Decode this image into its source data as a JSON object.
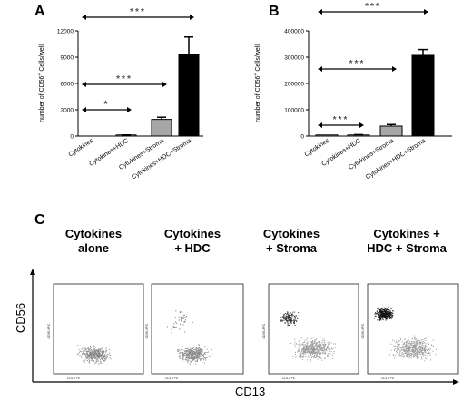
{
  "panels": {
    "a": "A",
    "b": "B",
    "c": "C"
  },
  "significance": {
    "one": "*",
    "three": "***"
  },
  "chart_data": [
    {
      "type": "bar",
      "panel": "A",
      "ylabel_parts": [
        "number of CD56",
        "+",
        " Cells/well"
      ],
      "categories": [
        "Cytokines",
        "Cytokines+HDC",
        "Cytokines+Stroma",
        "Cytokines+HDC+Stroma"
      ],
      "values": [
        0,
        80,
        1900,
        9300
      ],
      "errors": [
        0,
        50,
        250,
        2000
      ],
      "colors": [
        "#ffffff",
        "#ffffff",
        "#a6a6a6",
        "#000000"
      ],
      "ylim": [
        0,
        12000
      ],
      "yticks": [
        "0",
        "3000",
        "6000",
        "9000",
        "12000"
      ],
      "significance": [
        "*",
        "***",
        "***"
      ]
    },
    {
      "type": "bar",
      "panel": "B",
      "ylabel_parts": [
        "number of CD56",
        "+",
        " Cells/well"
      ],
      "categories": [
        "Cytokines",
        "Cytokines+HDC",
        "Cytokines+Stroma",
        "Cytokines+HDC+Stroma"
      ],
      "values": [
        500,
        4000,
        38000,
        307000
      ],
      "errors": [
        0,
        1500,
        6000,
        22000
      ],
      "colors": [
        "#ffffff",
        "#ffffff",
        "#a6a6a6",
        "#000000"
      ],
      "ylim": [
        0,
        400000
      ],
      "yticks": [
        "0",
        "100000",
        "200000",
        "300000",
        "400000"
      ],
      "significance": [
        "***",
        "***",
        "***"
      ]
    }
  ],
  "flow": {
    "titles": [
      [
        "Cytokines",
        "alone"
      ],
      [
        "Cytokines",
        "+ HDC"
      ],
      [
        "Cytokines",
        "+ Stroma"
      ],
      [
        "Cytokines +",
        "HDC + Stroma"
      ]
    ],
    "y_axis_label": "CD56",
    "x_axis_label": "CD13",
    "plot_x_label": "CD13 PE",
    "plot_y_label": "CD56 APC"
  }
}
